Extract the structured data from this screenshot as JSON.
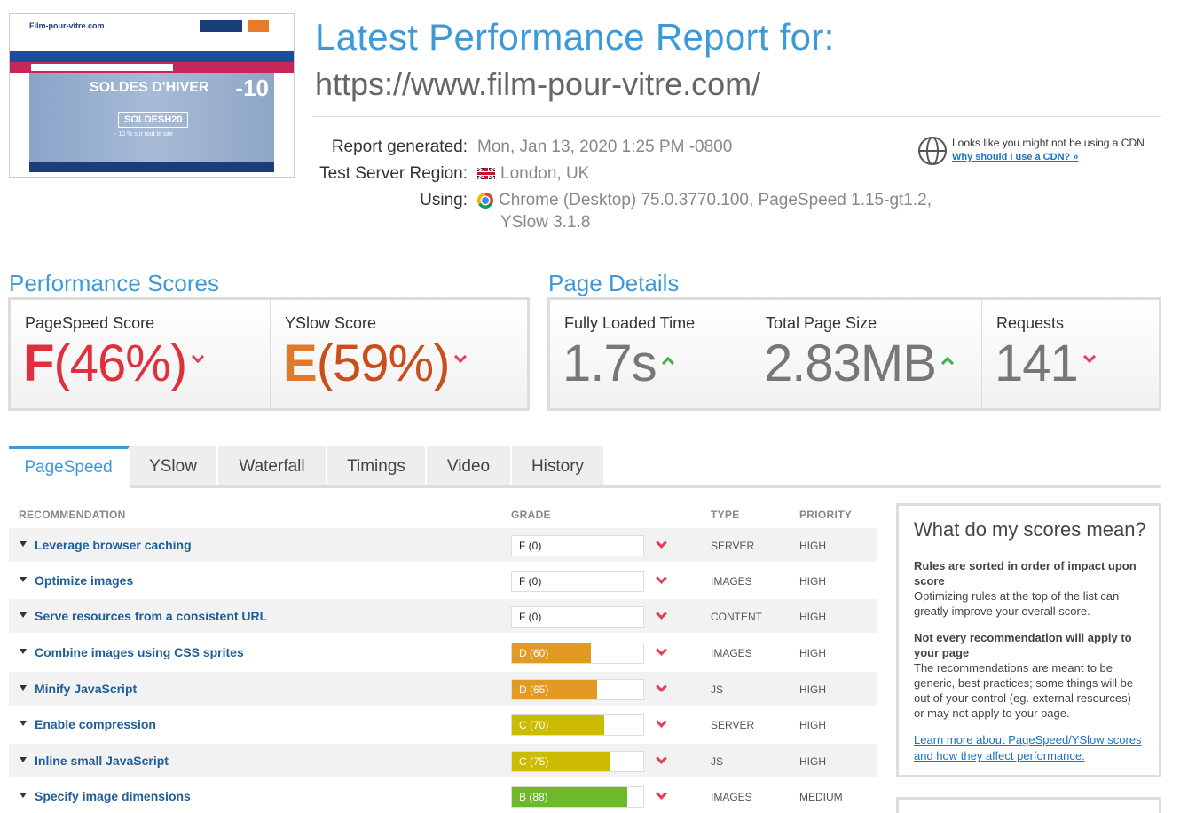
{
  "thumbnail": {
    "logo": "Film-pour-vitre.com",
    "hero_title": "SOLDES D'HIVER",
    "hero_discount": "-10",
    "hero_code": "SOLDESH20",
    "hero_sub": "- 10 % sur tout le site"
  },
  "header": {
    "title": "Latest Performance Report for:",
    "url": "https://www.film-pour-vitre.com/",
    "report_generated_label": "Report generated:",
    "report_generated_value": "Mon, Jan 13, 2020 1:25 PM -0800",
    "region_label": "Test Server Region:",
    "region_value": "London, UK",
    "using_label": "Using:",
    "using_value_line1": "Chrome (Desktop) 75.0.3770.100, PageSpeed 1.15-gt1.2,",
    "using_value_line2": "YSlow 3.1.8"
  },
  "cdn": {
    "text": "Looks like you might not be using a CDN",
    "link": "Why should I use a CDN? »"
  },
  "performance_scores": {
    "title": "Performance Scores",
    "pagespeed_label": "PageSpeed Score",
    "pagespeed_grade": "F",
    "pagespeed_pct": "(46%)",
    "yslow_label": "YSlow Score",
    "yslow_grade": "E",
    "yslow_pct": "(59%)"
  },
  "page_details": {
    "title": "Page Details",
    "load_label": "Fully Loaded Time",
    "load_value": "1.7s",
    "size_label": "Total Page Size",
    "size_value": "2.83MB",
    "requests_label": "Requests",
    "requests_value": "141"
  },
  "tabs": [
    "PageSpeed",
    "YSlow",
    "Waterfall",
    "Timings",
    "Video",
    "History"
  ],
  "table": {
    "headers": {
      "recommendation": "RECOMMENDATION",
      "grade": "GRADE",
      "type": "TYPE",
      "priority": "PRIORITY"
    },
    "rows": [
      {
        "name": "Leverage browser caching",
        "grade": "F (0)",
        "score": 0,
        "type": "SERVER",
        "priority": "HIGH"
      },
      {
        "name": "Optimize images",
        "grade": "F (0)",
        "score": 0,
        "type": "IMAGES",
        "priority": "HIGH"
      },
      {
        "name": "Serve resources from a consistent URL",
        "grade": "F (0)",
        "score": 0,
        "type": "CONTENT",
        "priority": "HIGH"
      },
      {
        "name": "Combine images using CSS sprites",
        "grade": "D (60)",
        "score": 60,
        "type": "IMAGES",
        "priority": "HIGH"
      },
      {
        "name": "Minify JavaScript",
        "grade": "D (65)",
        "score": 65,
        "type": "JS",
        "priority": "HIGH"
      },
      {
        "name": "Enable compression",
        "grade": "C (70)",
        "score": 70,
        "type": "SERVER",
        "priority": "HIGH"
      },
      {
        "name": "Inline small JavaScript",
        "grade": "C (75)",
        "score": 75,
        "type": "JS",
        "priority": "HIGH"
      },
      {
        "name": "Specify image dimensions",
        "grade": "B (88)",
        "score": 88,
        "type": "IMAGES",
        "priority": "MEDIUM"
      }
    ]
  },
  "side_panel": {
    "title": "What do my scores mean?",
    "b1": "Rules are sorted in order of impact upon score",
    "p1": "Optimizing rules at the top of the list can greatly improve your overall score.",
    "b2": "Not every recommendation will apply to your page",
    "p2": "The recommendations are meant to be generic, best practices; some things will be out of your control (eg. external resources) or may not apply to your page.",
    "link": "Learn more about PageSpeed/YSlow scores and how they affect performance."
  },
  "colors": {
    "accent": "#3d9ad9",
    "grade_f": "#e0303e",
    "grade_e": "#d9541e",
    "grade_d": "#e29a22",
    "grade_c": "#ccbb00",
    "grade_b": "#6cba2a",
    "arrow_down": "#e0405a",
    "arrow_up": "#3cb34a"
  }
}
